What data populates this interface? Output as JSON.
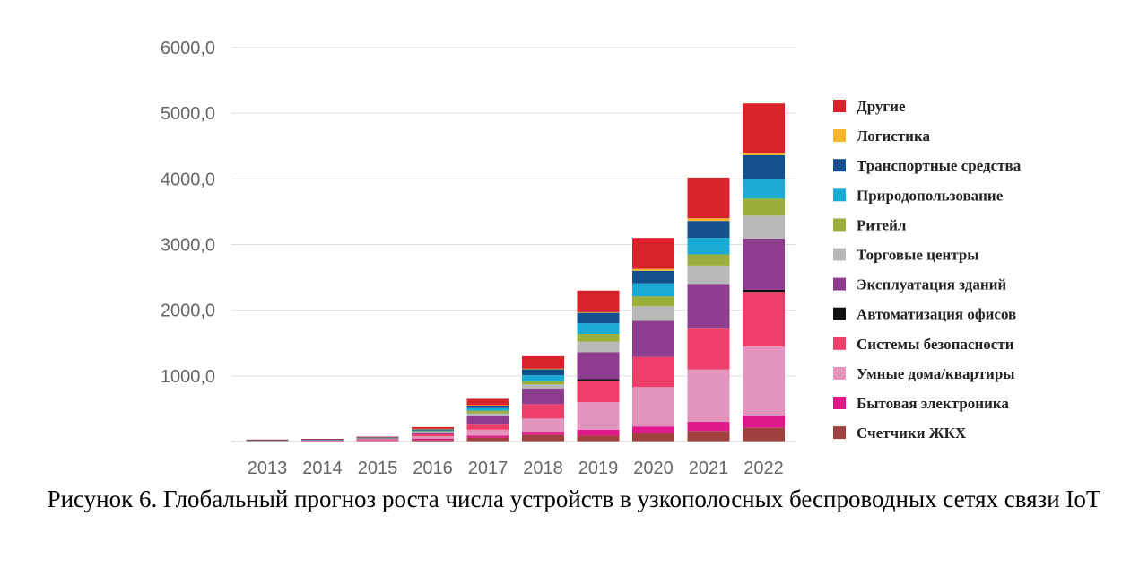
{
  "caption": "Рисунок 6. Глобальный прогноз роста числа устройств в узкополосных беспроводных сетях связи IoT",
  "chart_data": {
    "type": "bar",
    "stacked": true,
    "categories": [
      "2013",
      "2014",
      "2015",
      "2016",
      "2017",
      "2018",
      "2019",
      "2020",
      "2021",
      "2022"
    ],
    "y_ticks": [
      "1000,0",
      "2000,0",
      "3000,0",
      "4000,0",
      "5000,0",
      "6000,0"
    ],
    "ylim": [
      0,
      6000
    ],
    "grid": true,
    "legend_position": "right",
    "series": [
      {
        "name": "Счетчики ЖКХ",
        "color": "#a0413f",
        "values": [
          5,
          8,
          12,
          25,
          60,
          100,
          90,
          130,
          160,
          210
        ]
      },
      {
        "name": "Бытовая электроника",
        "color": "#e0188a",
        "values": [
          3,
          5,
          8,
          20,
          30,
          50,
          90,
          100,
          140,
          190
        ]
      },
      {
        "name": "Умные дома/квартиры",
        "color": "#e394bd",
        "values": [
          5,
          6,
          12,
          35,
          90,
          200,
          420,
          600,
          800,
          1050
        ]
      },
      {
        "name": "Системы безопасности",
        "color": "#ee3e6a",
        "values": [
          3,
          5,
          10,
          30,
          90,
          220,
          330,
          460,
          620,
          830
        ]
      },
      {
        "name": "Автоматизация офисов",
        "color": "#111111",
        "values": [
          0,
          0,
          0,
          0,
          0,
          0,
          20,
          0,
          0,
          30
        ]
      },
      {
        "name": "Эксплуатация зданий",
        "color": "#8e3d8e",
        "values": [
          2,
          3,
          8,
          30,
          120,
          240,
          410,
          550,
          680,
          780
        ]
      },
      {
        "name": "Торговые центры",
        "color": "#b8b8b8",
        "values": [
          1,
          1,
          3,
          10,
          40,
          60,
          160,
          220,
          280,
          350
        ]
      },
      {
        "name": "Ритейл",
        "color": "#9aae3c",
        "values": [
          1,
          1,
          3,
          8,
          40,
          50,
          120,
          150,
          170,
          260
        ]
      },
      {
        "name": "Природопользование",
        "color": "#19aad6",
        "values": [
          1,
          1,
          3,
          10,
          40,
          90,
          160,
          200,
          250,
          290
        ]
      },
      {
        "name": "Транспортные средства",
        "color": "#13508d",
        "values": [
          2,
          5,
          6,
          20,
          40,
          90,
          160,
          190,
          260,
          370
        ]
      },
      {
        "name": "Логистика",
        "color": "#f5b62a",
        "values": [
          0,
          0,
          0,
          5,
          5,
          10,
          10,
          30,
          40,
          40
        ]
      },
      {
        "name": "Другие",
        "color": "#d72329",
        "values": [
          7,
          5,
          10,
          27,
          95,
          190,
          330,
          470,
          620,
          750
        ]
      }
    ]
  }
}
